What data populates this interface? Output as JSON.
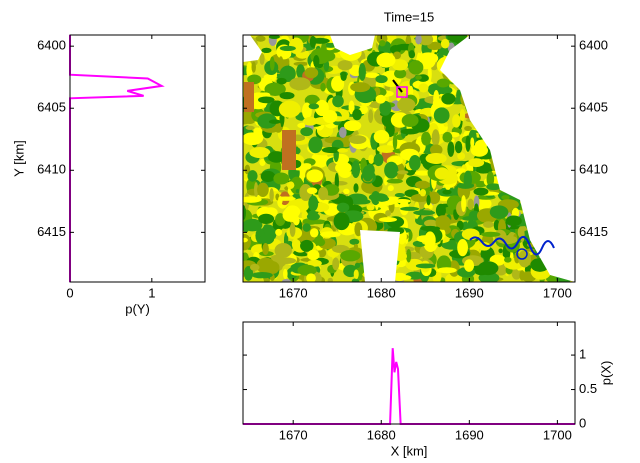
{
  "chart_data": [
    {
      "type": "line",
      "orientation": "vertical",
      "xlabel": "p(Y)",
      "ylabel": "Y [km]",
      "xlim": [
        0,
        1.65
      ],
      "xticks": [
        0,
        1
      ],
      "ylim": [
        6419,
        6399.1
      ],
      "yticks": [
        6400,
        6405,
        6410,
        6415
      ],
      "y": [
        6399.1,
        6402.3,
        6402.6,
        6403.2,
        6403.6,
        6404.0,
        6404.2,
        6419
      ],
      "values": [
        0,
        0,
        0.95,
        1.12,
        0.7,
        0.9,
        0,
        0
      ],
      "color": "#ff00ff"
    },
    {
      "type": "map",
      "title": "Time=15",
      "xlim": [
        1664.3,
        1702
      ],
      "xticks": [
        1670,
        1680,
        1690,
        1700
      ],
      "ylim": [
        6419,
        6399.1
      ],
      "yticks": [
        6400,
        6405,
        6410,
        6415
      ]
    },
    {
      "type": "line",
      "xlabel": "X [km]",
      "ylabel": "p(X)",
      "xlim": [
        1664.3,
        1702
      ],
      "xticks": [
        1670,
        1680,
        1690,
        1700
      ],
      "ylim": [
        0,
        1.48
      ],
      "yticks": [
        0,
        0.5,
        1
      ],
      "x": [
        1664.3,
        1681.0,
        1681.3,
        1681.5,
        1681.7,
        1681.9,
        1682.2,
        1702
      ],
      "values": [
        0,
        0,
        1.1,
        0.75,
        0.9,
        0.8,
        0,
        0
      ],
      "color": "#ff00ff"
    }
  ]
}
